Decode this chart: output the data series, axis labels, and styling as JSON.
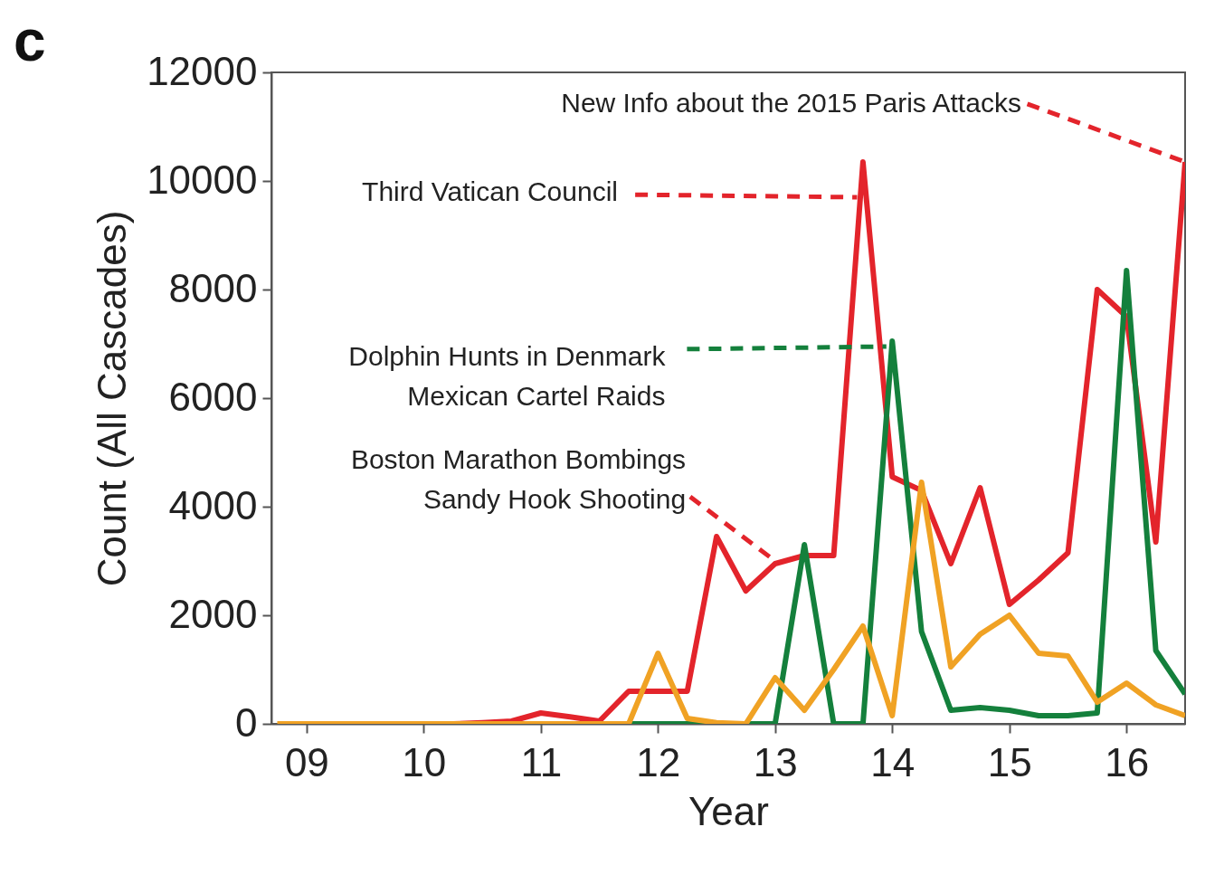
{
  "chart_data": {
    "type": "line",
    "title": "c",
    "xlabel": "Year",
    "ylabel": "Count (All Cascades)",
    "x": [
      8.75,
      9,
      9.25,
      9.5,
      9.75,
      10,
      10.25,
      10.5,
      10.75,
      11,
      11.25,
      11.5,
      11.75,
      12,
      12.25,
      12.5,
      12.75,
      13,
      13.25,
      13.5,
      13.75,
      14,
      14.25,
      14.5,
      14.75,
      15,
      15.25,
      15.5,
      15.75,
      16,
      16.25,
      16.5
    ],
    "series": [
      {
        "color": "#e3242b",
        "values": [
          null,
          null,
          null,
          null,
          null,
          0,
          0,
          20,
          50,
          200,
          130,
          50,
          600,
          600,
          600,
          3450,
          2450,
          2950,
          3100,
          3100,
          10350,
          4550,
          4300,
          2950,
          4350,
          2200,
          2650,
          3150,
          8000,
          7500,
          3350,
          10350
        ]
      },
      {
        "color": "#14803c",
        "values": [
          null,
          null,
          null,
          null,
          null,
          null,
          null,
          null,
          null,
          null,
          null,
          0,
          0,
          0,
          0,
          0,
          0,
          0,
          3300,
          0,
          0,
          7050,
          1700,
          250,
          300,
          250,
          150,
          150,
          200,
          8350,
          1350,
          550
        ]
      },
      {
        "color": "#f0a224",
        "values": [
          0,
          0,
          0,
          0,
          0,
          0,
          0,
          0,
          0,
          0,
          0,
          0,
          0,
          1300,
          100,
          20,
          0,
          850,
          250,
          1000,
          1800,
          150,
          4450,
          1050,
          1650,
          2000,
          1300,
          1250,
          400,
          750,
          350,
          150
        ]
      }
    ],
    "xlim": [
      8.7,
      16.5
    ],
    "xticks": [
      {
        "value": 9,
        "label": "09"
      },
      {
        "value": 10,
        "label": "10"
      },
      {
        "value": 11,
        "label": "11"
      },
      {
        "value": 12,
        "label": "12"
      },
      {
        "value": 13,
        "label": "13"
      },
      {
        "value": 14,
        "label": "14"
      },
      {
        "value": 15,
        "label": "15"
      },
      {
        "value": 16,
        "label": "16"
      }
    ],
    "ylim": [
      0,
      12000
    ],
    "yticks": [
      0,
      2000,
      4000,
      6000,
      8000,
      10000,
      12000
    ],
    "marker": "none",
    "line_style": "solid",
    "annotations": [
      {
        "text": "New Info about the 2015 Paris Attacks",
        "x": 16.5,
        "y": 10350
      },
      {
        "text": "Third Vatican Council",
        "x": 13.7,
        "y": 9700
      },
      {
        "text": "Dolphin Hunts in Denmark\nMexican Cartel Raids",
        "x": 13.95,
        "y": 6950
      },
      {
        "text": "Boston Marathon Bombings\nSandy Hook Shooting",
        "x": 13,
        "y": 3000
      }
    ]
  }
}
